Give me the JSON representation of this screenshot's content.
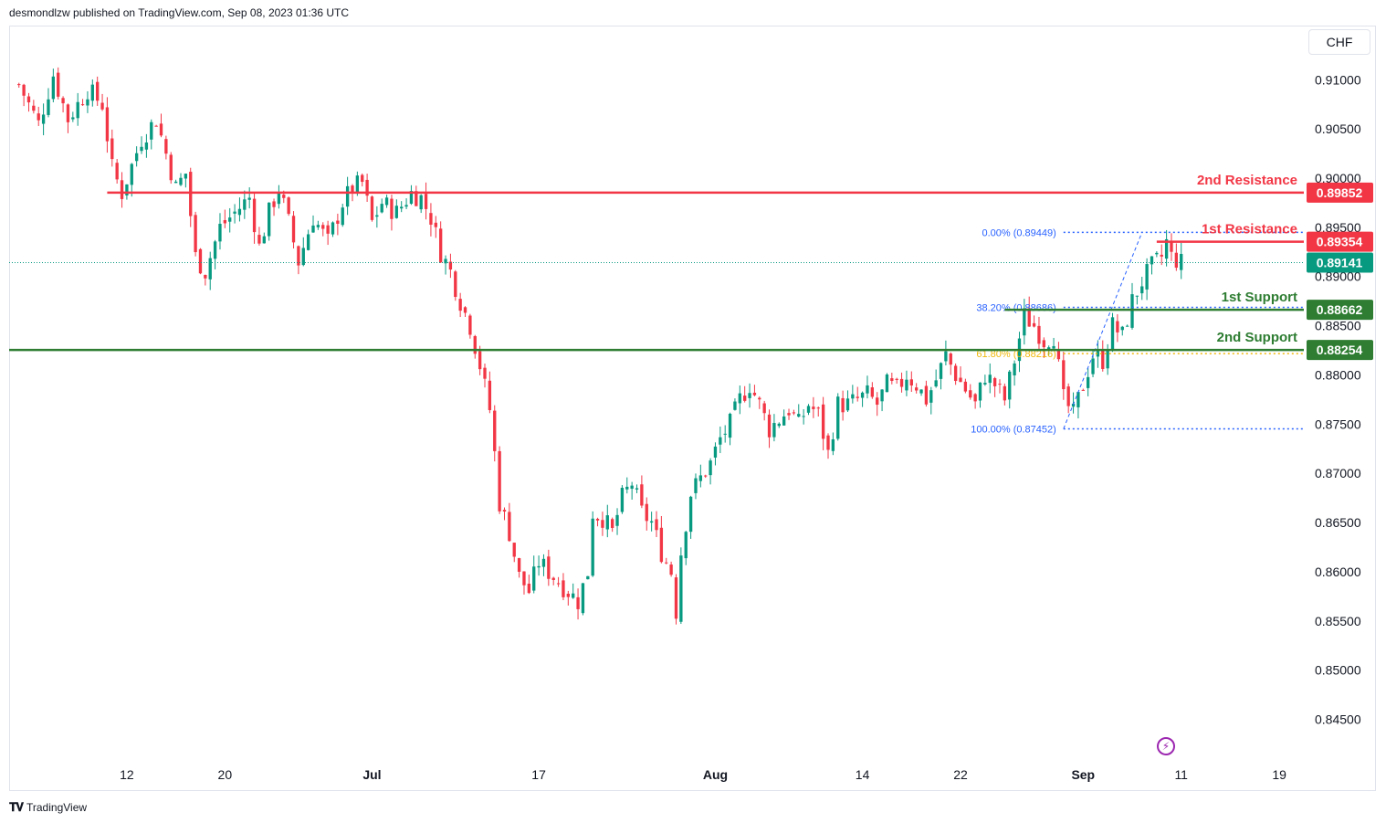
{
  "header": {
    "published": "desmondlzw published on TradingView.com, Sep 08, 2023 01:36 UTC"
  },
  "currency": "CHF",
  "footer": {
    "brand": "TradingView",
    "logo_icon": "tradingview-logo-icon"
  },
  "chart_data": {
    "type": "candlestick",
    "title": "",
    "xlabel": "",
    "ylabel": "",
    "ylim": [
      0.8405,
      0.9155
    ],
    "y_ticks": [
      "0.91000",
      "0.90500",
      "0.90000",
      "0.89500",
      "0.89000",
      "0.88500",
      "0.88000",
      "0.87500",
      "0.87000",
      "0.86500",
      "0.86000",
      "0.85500",
      "0.85000",
      "0.84500"
    ],
    "y_tick_values": [
      0.91,
      0.905,
      0.9,
      0.895,
      0.89,
      0.885,
      0.88,
      0.875,
      0.87,
      0.865,
      0.86,
      0.855,
      0.85,
      0.845
    ],
    "x_ticks": [
      {
        "label": "12",
        "index": 22,
        "bold": false
      },
      {
        "label": "20",
        "index": 42,
        "bold": false
      },
      {
        "label": "Jul",
        "index": 72,
        "bold": true
      },
      {
        "label": "17",
        "index": 106,
        "bold": false
      },
      {
        "label": "Aug",
        "index": 142,
        "bold": true
      },
      {
        "label": "14",
        "index": 172,
        "bold": false
      },
      {
        "label": "22",
        "index": 192,
        "bold": false
      },
      {
        "label": "Sep",
        "index": 217,
        "bold": true
      },
      {
        "label": "11",
        "index": 237,
        "bold": false
      },
      {
        "label": "19",
        "index": 257,
        "bold": false
      }
    ],
    "x_range": [
      -2,
      262
    ],
    "levels": [
      {
        "name": "2nd Resistance",
        "value": 0.89852,
        "label": "0.89852",
        "color": "#f23645",
        "from_index": 18
      },
      {
        "name": "1st Resistance",
        "value": 0.89354,
        "label": "0.89354",
        "color": "#f23645",
        "from_index": 232
      },
      {
        "name": "1st Support",
        "value": 0.88662,
        "label": "0.88662",
        "color": "#2e7d32",
        "from_index": 201
      },
      {
        "name": "2nd Support",
        "value": 0.88254,
        "label": "0.88254",
        "color": "#2e7d32",
        "from_index": -2
      }
    ],
    "last_price": {
      "value": 0.89141,
      "label": "0.89141",
      "color": "#089981"
    },
    "fibonacci": [
      {
        "label": "0.00% (0.89449)",
        "value": 0.89449,
        "color": "#2962ff"
      },
      {
        "label": "38.20% (0.88686)",
        "value": 0.88686,
        "color": "#2962ff"
      },
      {
        "label": "61.80% (0.88216)",
        "value": 0.88216,
        "color": "#f0b90b"
      },
      {
        "label": "100.00% (0.87452)",
        "value": 0.87452,
        "color": "#2962ff"
      }
    ],
    "fib_range": {
      "from_index": 213,
      "to_index": 263
    },
    "fib_trend": {
      "from_index": 213,
      "from_value": 0.87452,
      "to_index": 229,
      "to_value": 0.89449
    },
    "colors": {
      "up": "#089981",
      "down": "#f23645"
    },
    "path": [
      [
        0,
        0.9095
      ],
      [
        4,
        0.9055
      ],
      [
        7,
        0.9105
      ],
      [
        10,
        0.906
      ],
      [
        14,
        0.909
      ],
      [
        17,
        0.9075
      ],
      [
        19,
        0.901
      ],
      [
        21,
        0.8985
      ],
      [
        25,
        0.904
      ],
      [
        28,
        0.906
      ],
      [
        30,
        0.9025
      ],
      [
        32,
        0.899
      ],
      [
        34,
        0.9005
      ],
      [
        36,
        0.892
      ],
      [
        38,
        0.8905
      ],
      [
        41,
        0.895
      ],
      [
        45,
        0.897
      ],
      [
        47,
        0.898
      ],
      [
        49,
        0.893
      ],
      [
        51,
        0.8965
      ],
      [
        53,
        0.899
      ],
      [
        55,
        0.8955
      ],
      [
        57,
        0.8915
      ],
      [
        60,
        0.896
      ],
      [
        63,
        0.8935
      ],
      [
        66,
        0.8975
      ],
      [
        68,
        0.899
      ],
      [
        70,
        0.8995
      ],
      [
        72,
        0.8955
      ],
      [
        74,
        0.8975
      ],
      [
        77,
        0.8965
      ],
      [
        80,
        0.8985
      ],
      [
        82,
        0.898
      ],
      [
        84,
        0.896
      ],
      [
        86,
        0.8925
      ],
      [
        88,
        0.8905
      ],
      [
        90,
        0.8875
      ],
      [
        92,
        0.885
      ],
      [
        94,
        0.881
      ],
      [
        96,
        0.8765
      ],
      [
        97,
        0.872
      ],
      [
        98,
        0.867
      ],
      [
        100,
        0.864
      ],
      [
        102,
        0.8595
      ],
      [
        104,
        0.858
      ],
      [
        106,
        0.861
      ],
      [
        108,
        0.86
      ],
      [
        110,
        0.859
      ],
      [
        112,
        0.858
      ],
      [
        114,
        0.857
      ],
      [
        116,
        0.86
      ],
      [
        117,
        0.866
      ],
      [
        119,
        0.8655
      ],
      [
        121,
        0.864
      ],
      [
        123,
        0.8675
      ],
      [
        125,
        0.869
      ],
      [
        127,
        0.866
      ],
      [
        129,
        0.865
      ],
      [
        131,
        0.862
      ],
      [
        133,
        0.86
      ],
      [
        134,
        0.856
      ],
      [
        135,
        0.862
      ],
      [
        137,
        0.868
      ],
      [
        139,
        0.8695
      ],
      [
        141,
        0.871
      ],
      [
        143,
        0.8735
      ],
      [
        145,
        0.875
      ],
      [
        147,
        0.8775
      ],
      [
        149,
        0.879
      ],
      [
        151,
        0.877
      ],
      [
        153,
        0.8745
      ],
      [
        155,
        0.8755
      ],
      [
        157,
        0.8765
      ],
      [
        159,
        0.875
      ],
      [
        161,
        0.877
      ],
      [
        163,
        0.876
      ],
      [
        165,
        0.872
      ],
      [
        167,
        0.877
      ],
      [
        169,
        0.877
      ],
      [
        171,
        0.8775
      ],
      [
        173,
        0.878
      ],
      [
        175,
        0.877
      ],
      [
        177,
        0.879
      ],
      [
        179,
        0.8785
      ],
      [
        181,
        0.88
      ],
      [
        183,
        0.879
      ],
      [
        185,
        0.8775
      ],
      [
        187,
        0.8795
      ],
      [
        189,
        0.882
      ],
      [
        191,
        0.88
      ],
      [
        193,
        0.8785
      ],
      [
        195,
        0.877
      ],
      [
        197,
        0.88
      ],
      [
        199,
        0.879
      ],
      [
        201,
        0.8775
      ],
      [
        203,
        0.8815
      ],
      [
        205,
        0.886
      ],
      [
        207,
        0.885
      ],
      [
        209,
        0.8835
      ],
      [
        211,
        0.884
      ],
      [
        213,
        0.8775
      ],
      [
        215,
        0.876
      ],
      [
        217,
        0.879
      ],
      [
        219,
        0.882
      ],
      [
        221,
        0.8815
      ],
      [
        223,
        0.885
      ],
      [
        225,
        0.884
      ],
      [
        227,
        0.8875
      ],
      [
        229,
        0.8895
      ],
      [
        231,
        0.891
      ],
      [
        233,
        0.892
      ],
      [
        234,
        0.8935
      ],
      [
        235,
        0.892
      ],
      [
        237,
        0.8914
      ]
    ]
  }
}
